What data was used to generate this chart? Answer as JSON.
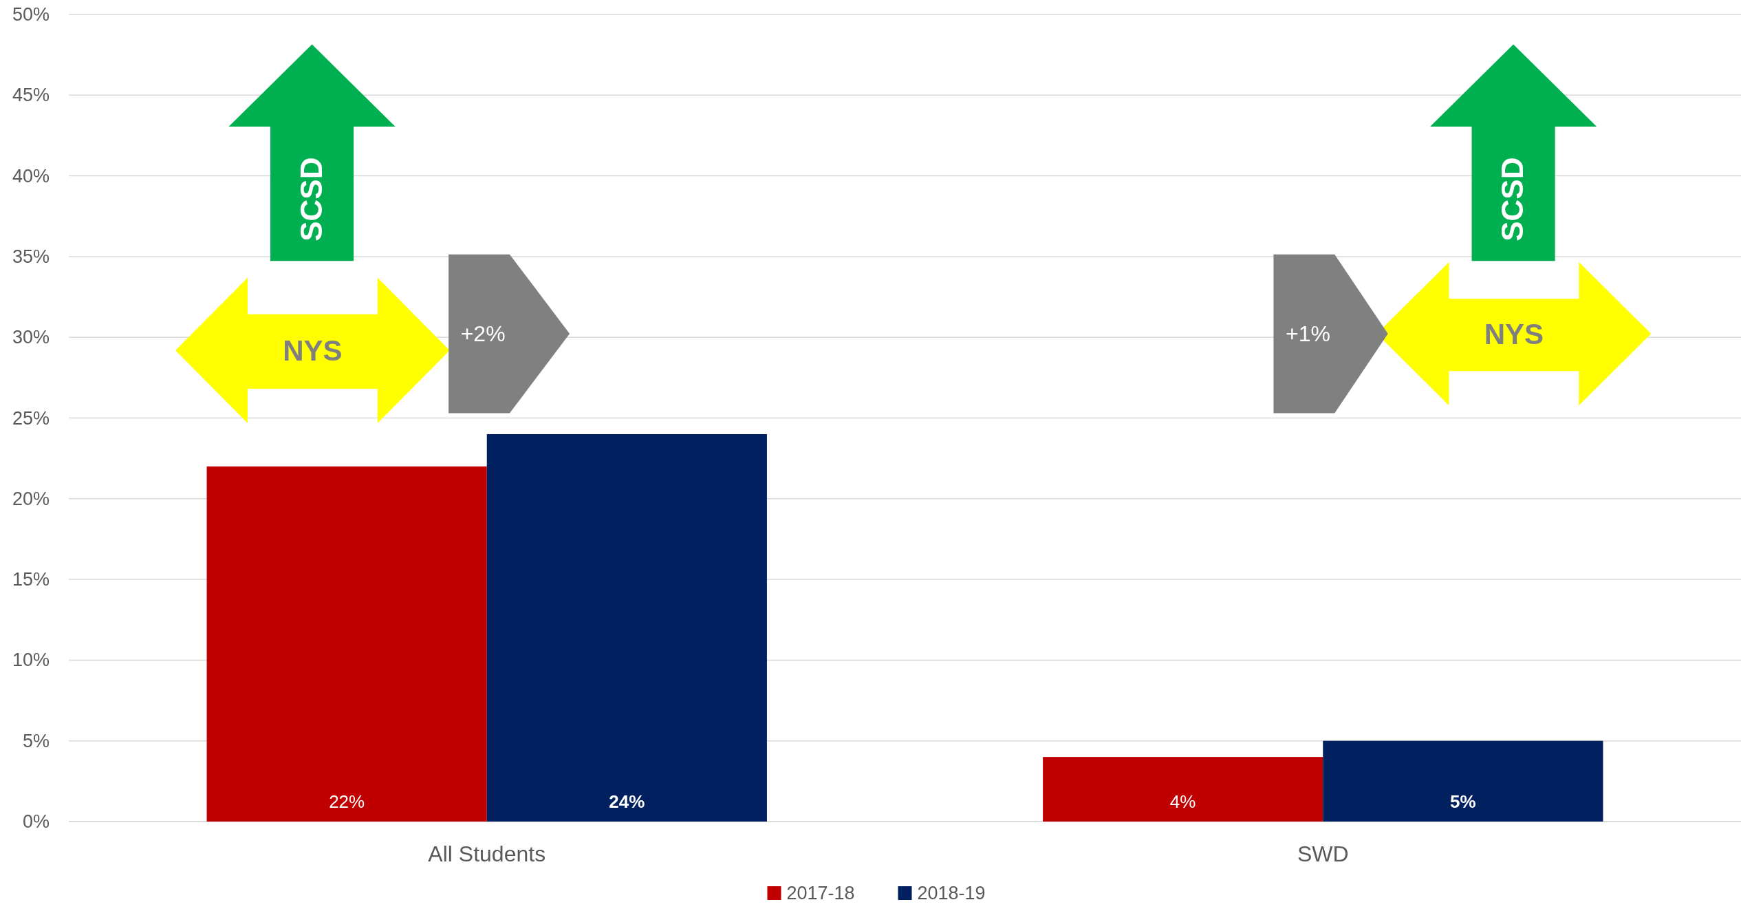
{
  "chart_data": {
    "type": "bar",
    "categories": [
      "All Students",
      "SWD"
    ],
    "series": [
      {
        "name": "2017-18",
        "color": "#c00000",
        "values": [
          22,
          4
        ],
        "value_labels": [
          "22%",
          "4%"
        ]
      },
      {
        "name": "2018-19",
        "color": "#002060",
        "values": [
          24,
          5
        ],
        "value_labels": [
          "24%",
          "5%"
        ]
      }
    ],
    "ylim": [
      0,
      50
    ],
    "yticks": [
      {
        "value": 0,
        "label": "0%"
      },
      {
        "value": 5,
        "label": "5%"
      },
      {
        "value": 10,
        "label": "10%"
      },
      {
        "value": 15,
        "label": "15%"
      },
      {
        "value": 20,
        "label": "20%"
      },
      {
        "value": 25,
        "label": "25%"
      },
      {
        "value": 30,
        "label": "30%"
      },
      {
        "value": 35,
        "label": "35%"
      },
      {
        "value": 40,
        "label": "40%"
      },
      {
        "value": 45,
        "label": "45%"
      },
      {
        "value": 50,
        "label": "50%"
      }
    ],
    "grid": "y",
    "legend": "bottom",
    "annotations": [
      "SCSD",
      "NYS",
      "+2%",
      "SCSD",
      "NYS",
      "+1%"
    ]
  }
}
